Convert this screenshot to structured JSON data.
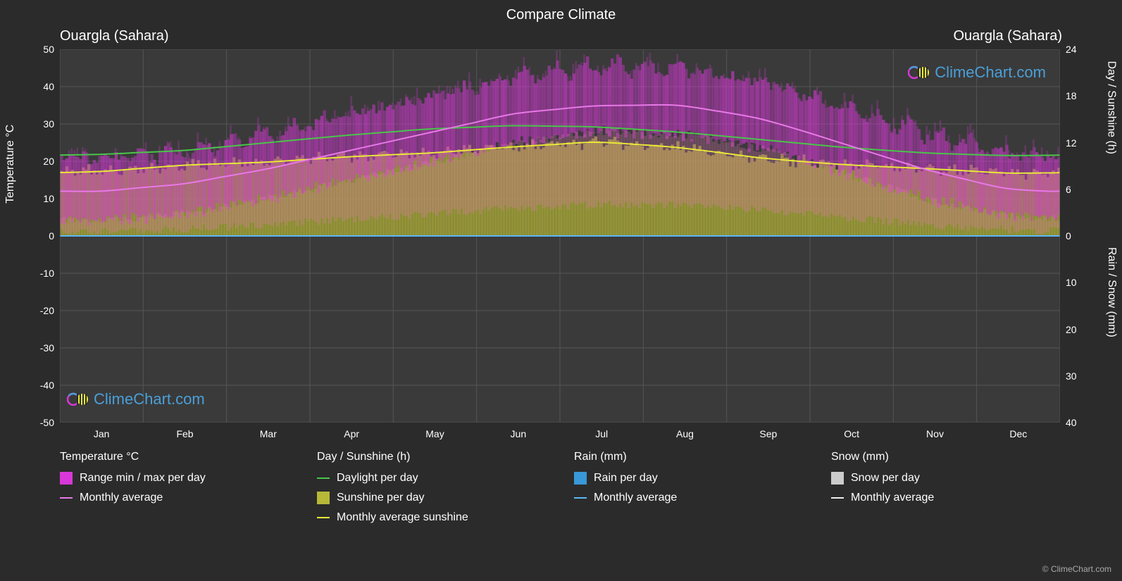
{
  "title": "Compare Climate",
  "location_left": "Ouargla (Sahara)",
  "location_right": "Ouargla (Sahara)",
  "watermark": "ClimeChart.com",
  "copyright": "© ClimeChart.com",
  "y_left": {
    "label": "Temperature °C",
    "min": -50,
    "max": 50,
    "step": 10,
    "ticks": [
      50,
      40,
      30,
      20,
      10,
      0,
      -10,
      -20,
      -30,
      -40,
      -50
    ]
  },
  "y_right_top": {
    "label": "Day / Sunshine (h)",
    "ticks": [
      24,
      18,
      12,
      6,
      0
    ],
    "min": 0,
    "max": 24
  },
  "y_right_bot": {
    "label": "Rain / Snow (mm)",
    "ticks": [
      10,
      20,
      30,
      40
    ],
    "min": 0,
    "max": 40
  },
  "x_axis": {
    "months": [
      "Jan",
      "Feb",
      "Mar",
      "Apr",
      "May",
      "Jun",
      "Jul",
      "Aug",
      "Sep",
      "Oct",
      "Nov",
      "Dec"
    ]
  },
  "chart": {
    "background": "#2b2b2b",
    "plot_bg": "#3a3a3a",
    "grid_color": "#555555",
    "grid_minor_color": "#4a4a4a",
    "zero_line_color": "#5a9bd4",
    "temp_range_color": "#d838d8",
    "temp_range_opacity": 0.5,
    "temp_avg_color": "#e878e8",
    "daylight_color": "#4ac44a",
    "sunshine_fill_color": "#b8b838",
    "sunshine_fill_opacity": 0.65,
    "sunshine_line_color": "#e8e838",
    "rain_fill_color": "#3898d8",
    "rain_line_color": "#5ab8f8",
    "snow_fill_color": "#cccccc",
    "snow_line_color": "#eeeeee",
    "watermark_color": "#4a9fd8"
  },
  "data": {
    "temp_max": [
      20,
      22,
      27,
      32,
      37,
      42,
      45,
      44,
      40,
      33,
      26,
      21
    ],
    "temp_avg": [
      12,
      14,
      18,
      23,
      28,
      33,
      35,
      35,
      31,
      24,
      17,
      12
    ],
    "temp_min": [
      4,
      6,
      10,
      15,
      20,
      25,
      28,
      27,
      23,
      16,
      9,
      5
    ],
    "daylight": [
      10.5,
      11.0,
      12.0,
      13.0,
      13.8,
      14.2,
      14.0,
      13.3,
      12.3,
      11.3,
      10.6,
      10.3
    ],
    "sunshine": [
      8.3,
      9.1,
      9.5,
      10.2,
      10.7,
      11.5,
      12.1,
      11.3,
      9.9,
      9.1,
      8.6,
      8.0
    ],
    "rain_avg": [
      0,
      0,
      0,
      0,
      0,
      0,
      0,
      0,
      0,
      0,
      0,
      0
    ]
  },
  "legend": {
    "temperature": {
      "header": "Temperature °C",
      "items": [
        {
          "type": "box",
          "color": "#d838d8",
          "label": "Range min / max per day"
        },
        {
          "type": "line",
          "color": "#e878e8",
          "label": "Monthly average"
        }
      ]
    },
    "daysun": {
      "header": "Day / Sunshine (h)",
      "items": [
        {
          "type": "line",
          "color": "#4ac44a",
          "label": "Daylight per day"
        },
        {
          "type": "box",
          "color": "#b8b838",
          "label": "Sunshine per day"
        },
        {
          "type": "line",
          "color": "#e8e838",
          "label": "Monthly average sunshine"
        }
      ]
    },
    "rain": {
      "header": "Rain (mm)",
      "items": [
        {
          "type": "box",
          "color": "#3898d8",
          "label": "Rain per day"
        },
        {
          "type": "line",
          "color": "#5ab8f8",
          "label": "Monthly average"
        }
      ]
    },
    "snow": {
      "header": "Snow (mm)",
      "items": [
        {
          "type": "box",
          "color": "#cccccc",
          "label": "Snow per day"
        },
        {
          "type": "line",
          "color": "#eeeeee",
          "label": "Monthly average"
        }
      ]
    }
  }
}
